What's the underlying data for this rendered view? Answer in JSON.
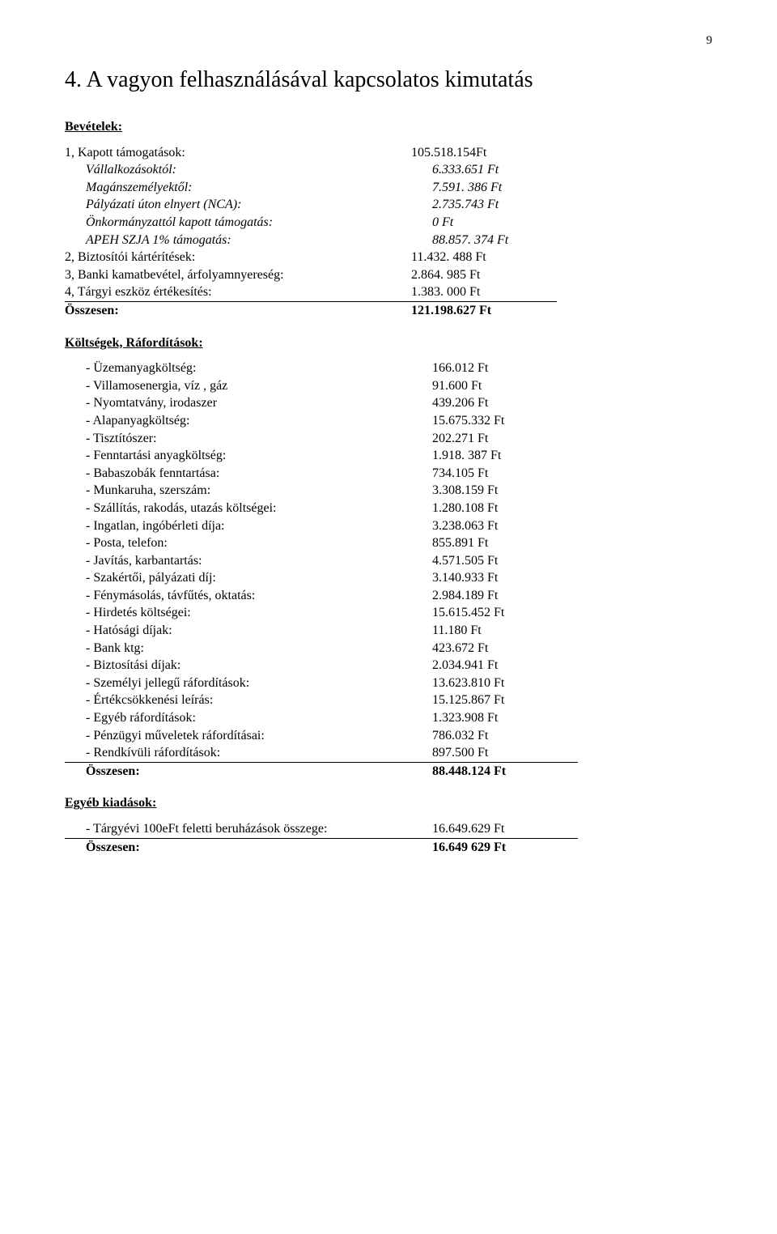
{
  "page_number": "9",
  "title": "4. A vagyon felhasználásával kapcsolatos kimutatás",
  "revenues": {
    "heading": "Bevételek:",
    "rows": [
      {
        "label": "1, Kapott támogatások:",
        "value": "105.518.154Ft",
        "italic": false,
        "indent": 0
      },
      {
        "label": "Vállalkozásoktól:",
        "value": "6.333.651 Ft",
        "italic": true,
        "indent": 1
      },
      {
        "label": "Magánszemélyektől:",
        "value": "7.591. 386 Ft",
        "italic": true,
        "indent": 1
      },
      {
        "label": "Pályázati úton elnyert (NCA):",
        "value": "2.735.743 Ft",
        "italic": true,
        "indent": 1
      },
      {
        "label": "Önkormányzattól kapott támogatás:",
        "value": "0 Ft",
        "italic": true,
        "indent": 1
      },
      {
        "label": "APEH SZJA 1% támogatás:",
        "value": "88.857. 374 Ft",
        "italic": true,
        "indent": 1
      },
      {
        "label": "2, Biztosítói kártérítések:",
        "value": "11.432. 488 Ft",
        "italic": false,
        "indent": 0
      },
      {
        "label": "3, Banki kamatbevétel, árfolyamnyereség:",
        "value": "2.864. 985 Ft",
        "italic": false,
        "indent": 0
      },
      {
        "label": "4, Tárgyi eszköz értékesítés:",
        "value": "1.383. 000  Ft",
        "italic": false,
        "indent": 0,
        "underline": true
      }
    ],
    "total_label": "Összesen:",
    "total_value": "121.198.627 Ft"
  },
  "costs": {
    "heading": "Költségek, Ráfordítások:",
    "rows": [
      {
        "label": "- Üzemanyagköltség:",
        "value": "166.012 Ft"
      },
      {
        "label": "- Villamosenergia, víz , gáz",
        "value": "91.600 Ft"
      },
      {
        "label": "- Nyomtatvány, irodaszer",
        "value": "439.206 Ft"
      },
      {
        "label": "- Alapanyagköltség:",
        "value": "15.675.332 Ft"
      },
      {
        "label": "- Tisztítószer:",
        "value": "202.271 Ft"
      },
      {
        "label": "- Fenntartási anyagköltség:",
        "value": "1.918. 387 Ft"
      },
      {
        "label": "- Babaszobák fenntartása:",
        "value": "734.105 Ft"
      },
      {
        "label": "- Munkaruha, szerszám:",
        "value": "3.308.159 Ft"
      },
      {
        "label": "- Szállítás, rakodás, utazás költségei:",
        "value": "1.280.108 Ft"
      },
      {
        "label": "- Ingatlan, ingóbérleti díja:",
        "value": "3.238.063 Ft"
      },
      {
        "label": "- Posta, telefon:",
        "value": "855.891 Ft"
      },
      {
        "label": "- Javítás, karbantartás:",
        "value": "4.571.505 Ft"
      },
      {
        "label": "- Szakértői, pályázati díj:",
        "value": "3.140.933 Ft"
      },
      {
        "label": "- Fénymásolás, távfűtés, oktatás:",
        "value": "2.984.189 Ft"
      },
      {
        "label": "- Hirdetés költségei:",
        "value": "15.615.452 Ft"
      },
      {
        "label": "- Hatósági díjak:",
        "value": "11.180 Ft"
      },
      {
        "label": "- Bank ktg:",
        "value": "423.672 Ft"
      },
      {
        "label": "- Biztosítási díjak:",
        "value": "2.034.941 Ft"
      },
      {
        "label": "- Személyi jellegű ráfordítások:",
        "value": "13.623.810 Ft"
      },
      {
        "label": "- Értékcsökkenési leírás:",
        "value": "15.125.867 Ft"
      },
      {
        "label": "- Egyéb ráfordítások:",
        "value": "1.323.908 Ft"
      },
      {
        "label": "- Pénzügyi műveletek ráfordításai:",
        "value": "786.032 Ft"
      },
      {
        "label": "- Rendkívüli ráfordítások:",
        "value": "897.500 Ft",
        "underline": true
      }
    ],
    "total_label": "Összesen:",
    "total_value": "88.448.124 Ft"
  },
  "other": {
    "heading": "Egyéb kiadások:",
    "rows": [
      {
        "label": "- Tárgyévi 100eFt feletti beruházások összege:",
        "value": "16.649.629 Ft",
        "underline": true
      }
    ],
    "total_label": "Összesen:",
    "total_value": "16.649 629 Ft"
  }
}
